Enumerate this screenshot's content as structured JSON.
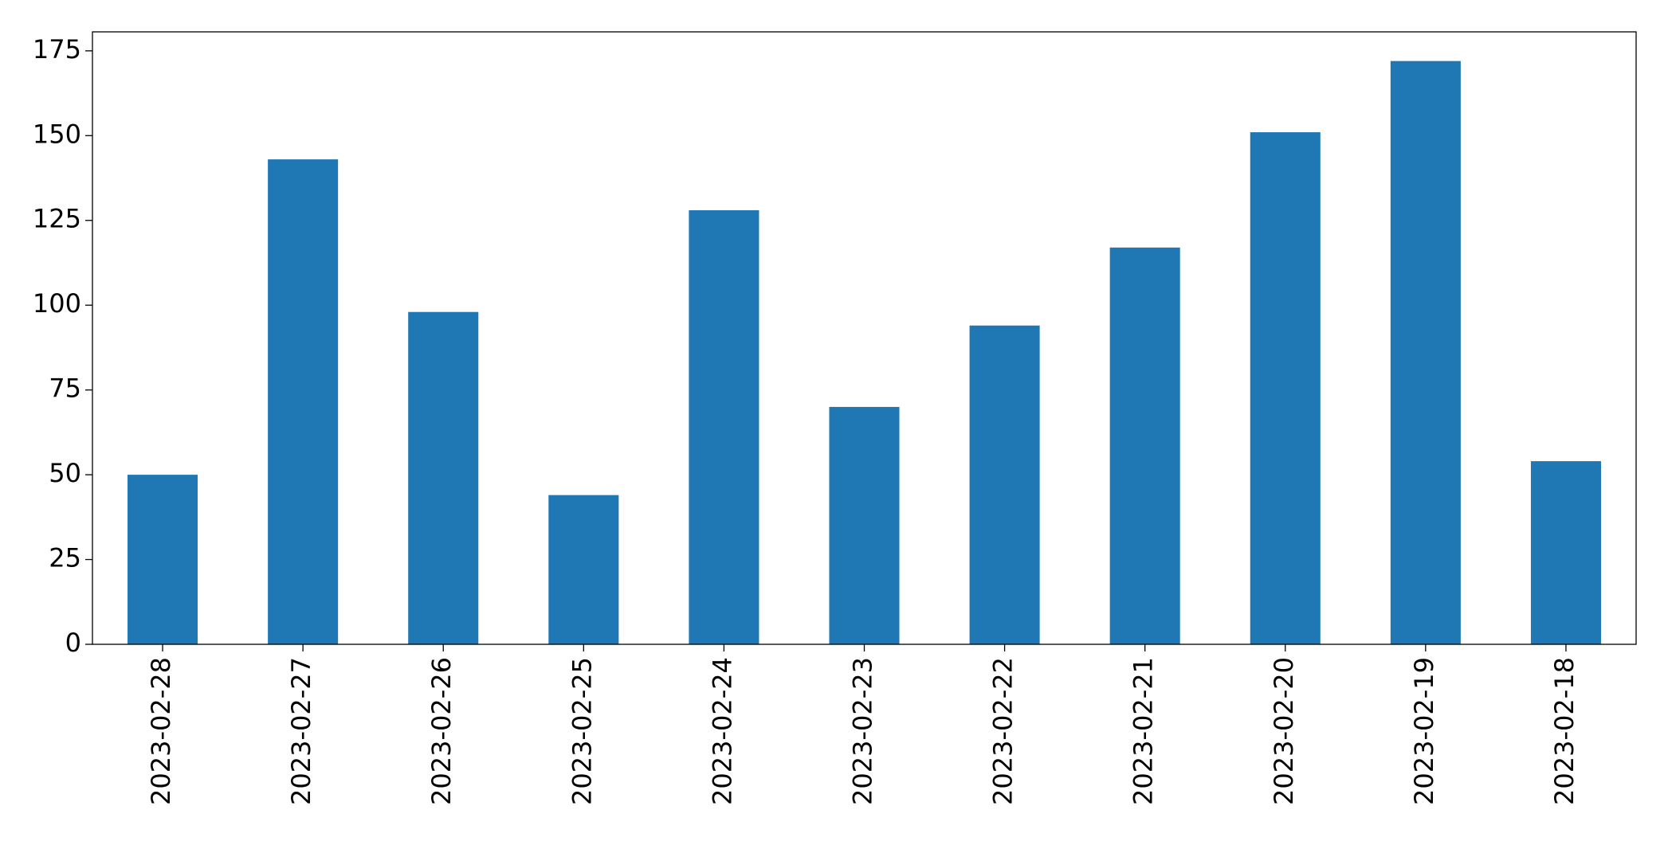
{
  "chart_data": {
    "type": "bar",
    "categories": [
      "2023-02-28",
      "2023-02-27",
      "2023-02-26",
      "2023-02-25",
      "2023-02-24",
      "2023-02-23",
      "2023-02-22",
      "2023-02-21",
      "2023-02-20",
      "2023-02-19",
      "2023-02-18"
    ],
    "values": [
      50,
      143,
      98,
      44,
      128,
      70,
      94,
      117,
      151,
      172,
      54
    ],
    "color": "#1f77b4",
    "ylim": [
      0,
      180.6
    ],
    "yticks": [
      0,
      25,
      50,
      75,
      100,
      125,
      150,
      175
    ],
    "grid": false
  }
}
